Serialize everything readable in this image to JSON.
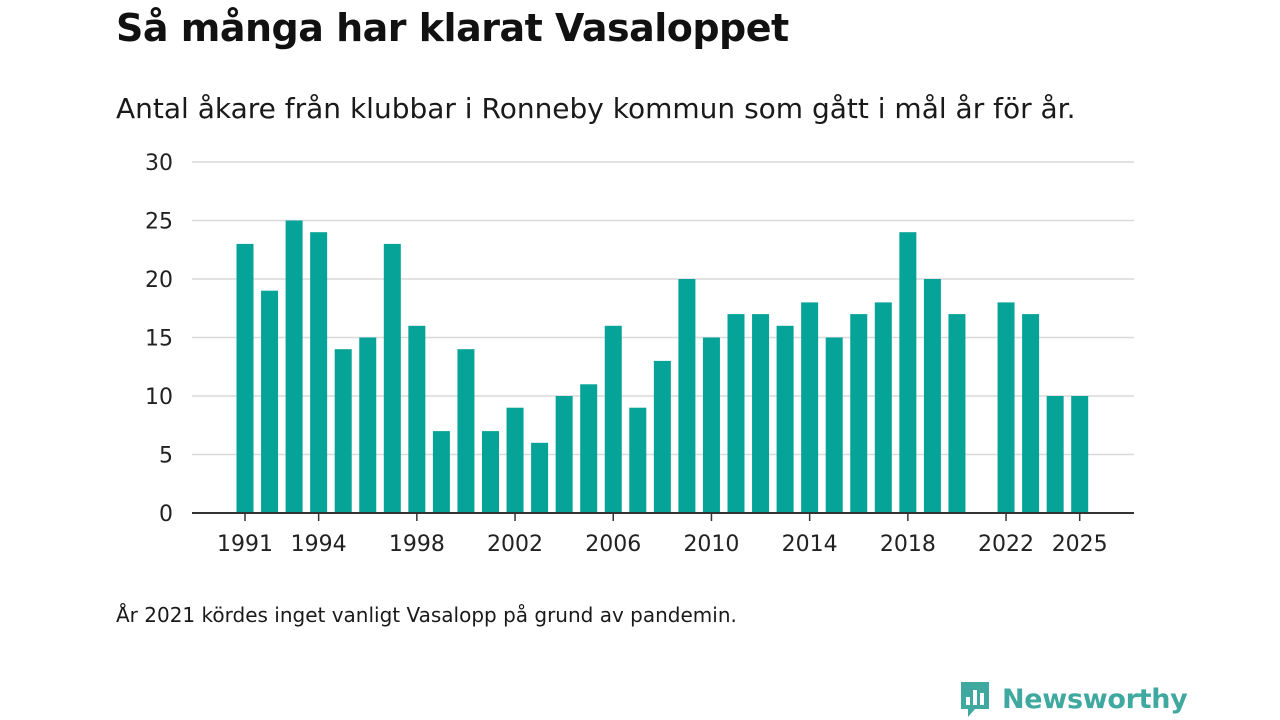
{
  "header": {
    "title": "Så många har klarat Vasaloppet",
    "subtitle": "Antal åkare från klubbar i Ronneby kommun som gått i mål år för år."
  },
  "footnote": "År 2021 kördes inget vanligt Vasalopp på grund av pandemin.",
  "brand": {
    "name": "Newsworthy",
    "icon": "bar-chart-speech-bubble-icon",
    "color": "#3fa9a0"
  },
  "chart_data": {
    "type": "bar",
    "title": "Så många har klarat Vasaloppet",
    "subtitle": "Antal åkare från klubbar i Ronneby kommun som gått i mål år för år.",
    "xlabel": "",
    "ylabel": "",
    "ylim": [
      0,
      30
    ],
    "yticks": [
      0,
      5,
      10,
      15,
      20,
      25,
      30
    ],
    "xticks": [
      1991,
      1994,
      1998,
      2002,
      2006,
      2010,
      2014,
      2018,
      2022,
      2025
    ],
    "grid": true,
    "bar_color": "#06a399",
    "categories": [
      1991,
      1992,
      1993,
      1994,
      1995,
      1996,
      1997,
      1998,
      1999,
      2000,
      2001,
      2002,
      2003,
      2004,
      2005,
      2006,
      2007,
      2008,
      2009,
      2010,
      2011,
      2012,
      2013,
      2014,
      2015,
      2016,
      2017,
      2018,
      2019,
      2020,
      2021,
      2022,
      2023,
      2024,
      2025
    ],
    "values": [
      23,
      19,
      25,
      24,
      14,
      15,
      23,
      16,
      7,
      14,
      7,
      9,
      6,
      10,
      11,
      16,
      9,
      13,
      20,
      15,
      17,
      17,
      16,
      18,
      15,
      17,
      18,
      24,
      20,
      17,
      null,
      18,
      17,
      10,
      10
    ]
  }
}
